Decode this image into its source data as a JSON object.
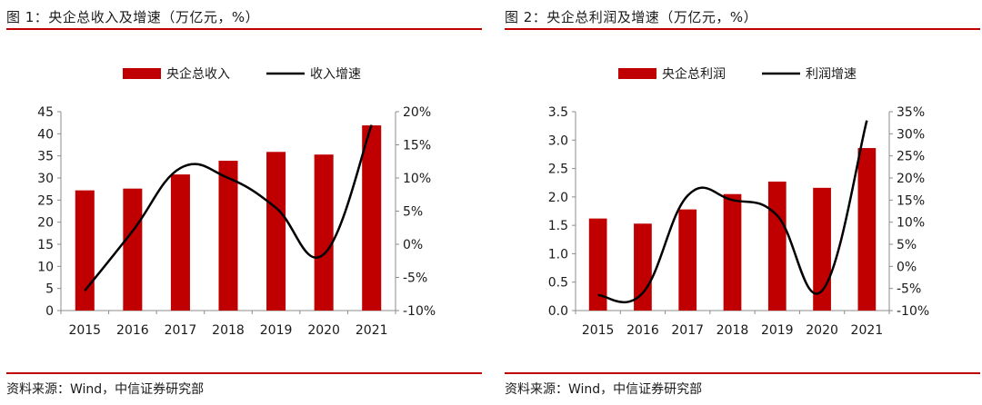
{
  "figures": [
    {
      "title": "图 1：央企总收入及增速（万亿元，%）",
      "source": "资料来源：Wind，中信证券研究部"
    },
    {
      "title": "图 2：央企总利润及增速（万亿元，%）",
      "source": "资料来源：Wind，中信证券研究部"
    }
  ],
  "colors": {
    "bar": "#c00000",
    "line": "#000000",
    "rule": "#c00000",
    "axis": "#8c8c8c"
  },
  "chart_data": [
    {
      "type": "bar",
      "categories": [
        "2015",
        "2016",
        "2017",
        "2018",
        "2019",
        "2020",
        "2021"
      ],
      "series": [
        {
          "name": "央企总收入",
          "type": "bar",
          "axis": "left",
          "values": [
            27.2,
            27.6,
            30.8,
            33.9,
            35.9,
            35.3,
            41.9
          ]
        },
        {
          "name": "收入增速",
          "type": "line",
          "axis": "right",
          "values": [
            -7.0,
            2.0,
            11.5,
            10.0,
            5.5,
            -1.5,
            18.0
          ]
        }
      ],
      "y_left": {
        "min": 0,
        "max": 45,
        "step": 5,
        "ticks": [
          "0",
          "5",
          "10",
          "15",
          "20",
          "25",
          "30",
          "35",
          "40",
          "45"
        ]
      },
      "y_right": {
        "min": -10,
        "max": 20,
        "step": 5,
        "ticks": [
          "-10%",
          "-5%",
          "0%",
          "5%",
          "10%",
          "15%",
          "20%"
        ]
      },
      "legend": "top-center"
    },
    {
      "type": "bar",
      "categories": [
        "2015",
        "2016",
        "2017",
        "2018",
        "2019",
        "2020",
        "2021"
      ],
      "series": [
        {
          "name": "央企总利润",
          "type": "bar",
          "axis": "left",
          "values": [
            1.62,
            1.53,
            1.78,
            2.05,
            2.27,
            2.16,
            2.86
          ]
        },
        {
          "name": "利润增速",
          "type": "line",
          "axis": "right",
          "values": [
            -6.5,
            -6.0,
            16.0,
            15.0,
            11.5,
            -5.5,
            33.0
          ]
        }
      ],
      "y_left": {
        "min": 0,
        "max": 3.5,
        "step": 0.5,
        "ticks": [
          "0.0",
          "0.5",
          "1.0",
          "1.5",
          "2.0",
          "2.5",
          "3.0",
          "3.5"
        ]
      },
      "y_right": {
        "min": -10,
        "max": 35,
        "step": 5,
        "ticks": [
          "-10%",
          "-5%",
          "0%",
          "5%",
          "10%",
          "15%",
          "20%",
          "25%",
          "30%",
          "35%"
        ]
      },
      "legend": "top-center"
    }
  ]
}
